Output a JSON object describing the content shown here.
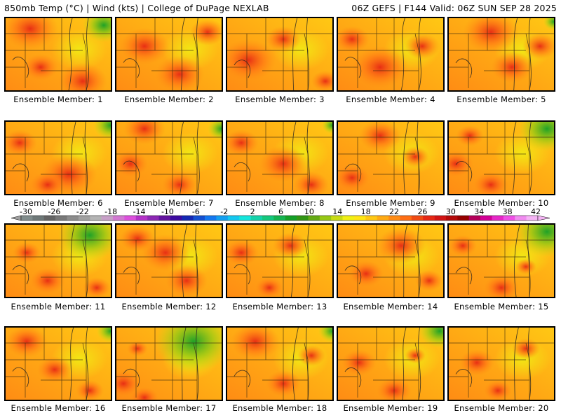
{
  "header": {
    "left": "850mb Temp (°C) | Wind (kts) | College of DuPage NEXLAB",
    "right": "06Z GEFS | F144 Valid: 06Z SUN SEP 28 2025"
  },
  "members": [
    {
      "label": "Ensemble Member: 1"
    },
    {
      "label": "Ensemble Member: 2"
    },
    {
      "label": "Ensemble Member: 3"
    },
    {
      "label": "Ensemble Member: 4"
    },
    {
      "label": "Ensemble Member: 5"
    },
    {
      "label": "Ensemble Member: 6"
    },
    {
      "label": "Ensemble Member: 7"
    },
    {
      "label": "Ensemble Member: 8"
    },
    {
      "label": "Ensemble Member: 9"
    },
    {
      "label": "Ensemble Member: 10"
    },
    {
      "label": "Ensemble Member: 11"
    },
    {
      "label": "Ensemble Member: 12"
    },
    {
      "label": "Ensemble Member: 13"
    },
    {
      "label": "Ensemble Member: 14"
    },
    {
      "label": "Ensemble Member: 15"
    },
    {
      "label": "Ensemble Member: 16"
    },
    {
      "label": "Ensemble Member: 17"
    },
    {
      "label": "Ensemble Member: 18"
    },
    {
      "label": "Ensemble Member: 19"
    },
    {
      "label": "Ensemble Member: 20"
    }
  ],
  "colorbar": {
    "labels": [
      "-30",
      "-26",
      "-22",
      "-18",
      "-14",
      "-10",
      "-6",
      "-2",
      "2",
      "6",
      "10",
      "14",
      "18",
      "22",
      "26",
      "30",
      "34",
      "38",
      "42"
    ],
    "colors": [
      "#808c8c",
      "#6e7878",
      "#646464",
      "#787878",
      "#8c8c8c",
      "#a0a0a0",
      "#b4b4b4",
      "#c8a0c8",
      "#d278d2",
      "#dc50dc",
      "#b432c8",
      "#8c28b4",
      "#6414a0",
      "#3c0aa0",
      "#1428b4",
      "#1450d2",
      "#1478f0",
      "#14a0f0",
      "#14c8f0",
      "#14e6dc",
      "#14d2aa",
      "#14c87d",
      "#14b450",
      "#14a028",
      "#329614",
      "#64aa14",
      "#96c814",
      "#c8dc14",
      "#f0f014",
      "#ffe614",
      "#ffc814",
      "#ffaa14",
      "#ff8c14",
      "#ff6e14",
      "#f04b14",
      "#e62814",
      "#d21414",
      "#b40a0a",
      "#960000",
      "#b4005a",
      "#d20096",
      "#e628c8",
      "#f050e6",
      "#f08cf0",
      "#f5b4f5"
    ]
  }
}
